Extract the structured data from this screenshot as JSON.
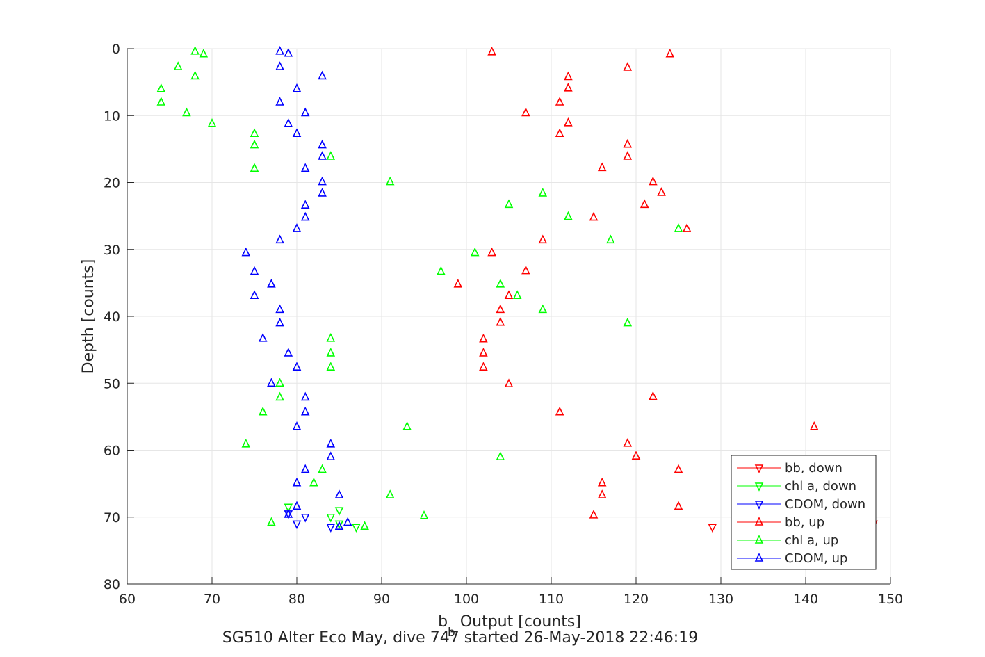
{
  "chart_data": {
    "type": "scatter",
    "xlabel_main": "b",
    "xlabel_sub": "b",
    "xlabel_rest": " Output [counts]",
    "ylabel": "Depth [counts]",
    "caption": "SG510 Alter Eco May, dive 747 started 26-May-2018 22:46:19",
    "xlim": [
      60,
      150
    ],
    "ylim": [
      0,
      80
    ],
    "y_reversed": true,
    "grid": true,
    "xticks": [
      60,
      70,
      80,
      90,
      100,
      110,
      120,
      130,
      140,
      150
    ],
    "yticks": [
      0,
      10,
      20,
      30,
      40,
      50,
      60,
      70,
      80
    ],
    "legend_position": "bottom-right",
    "series": [
      {
        "name": "bb, down",
        "color": "#ff0000",
        "marker": "triangle-down",
        "points": [
          [
            129,
            71.5
          ],
          [
            148,
            71.0
          ]
        ]
      },
      {
        "name": "chl a, down",
        "color": "#00ff00",
        "marker": "triangle-down",
        "points": [
          [
            79,
            68.5
          ],
          [
            84,
            70.0
          ],
          [
            85,
            69.0
          ],
          [
            85,
            71.0
          ],
          [
            87,
            71.5
          ]
        ]
      },
      {
        "name": "CDOM, down",
        "color": "#0000ff",
        "marker": "triangle-down",
        "points": [
          [
            79,
            69.5
          ],
          [
            80,
            71.0
          ],
          [
            81,
            70.0
          ],
          [
            84,
            71.5
          ]
        ]
      },
      {
        "name": "bb, up",
        "color": "#ff0000",
        "marker": "triangle-up",
        "points": [
          [
            103,
            0.5
          ],
          [
            124,
            0.8
          ],
          [
            119,
            2.8
          ],
          [
            112,
            4.2
          ],
          [
            112,
            5.9
          ],
          [
            111,
            8.0
          ],
          [
            107,
            9.6
          ],
          [
            112,
            11.1
          ],
          [
            111,
            12.7
          ],
          [
            119,
            14.3
          ],
          [
            119,
            16.1
          ],
          [
            116,
            17.8
          ],
          [
            122,
            19.9
          ],
          [
            123,
            21.5
          ],
          [
            121,
            23.3
          ],
          [
            115,
            25.2
          ],
          [
            126,
            26.9
          ],
          [
            109,
            28.6
          ],
          [
            103,
            30.5
          ],
          [
            107,
            33.2
          ],
          [
            99,
            35.2
          ],
          [
            105,
            36.9
          ],
          [
            104,
            39.0
          ],
          [
            104,
            40.9
          ],
          [
            102,
            43.4
          ],
          [
            102,
            45.5
          ],
          [
            102,
            47.6
          ],
          [
            105,
            50.1
          ],
          [
            122,
            52.0
          ],
          [
            111,
            54.3
          ],
          [
            141,
            56.5
          ],
          [
            119,
            59.0
          ],
          [
            120,
            60.9
          ],
          [
            125,
            62.9
          ],
          [
            116,
            64.9
          ],
          [
            116,
            66.7
          ],
          [
            125,
            68.4
          ],
          [
            115,
            69.7
          ]
        ]
      },
      {
        "name": "chl a, up",
        "color": "#00ff00",
        "marker": "triangle-up",
        "points": [
          [
            68,
            0.4
          ],
          [
            69,
            0.8
          ],
          [
            66,
            2.7
          ],
          [
            68,
            4.1
          ],
          [
            64,
            6.0
          ],
          [
            64,
            8.0
          ],
          [
            67,
            9.6
          ],
          [
            70,
            11.2
          ],
          [
            75,
            12.7
          ],
          [
            75,
            14.4
          ],
          [
            84,
            16.1
          ],
          [
            75,
            17.9
          ],
          [
            91,
            19.9
          ],
          [
            109,
            21.6
          ],
          [
            105,
            23.3
          ],
          [
            112,
            25.1
          ],
          [
            125,
            26.9
          ],
          [
            117,
            28.6
          ],
          [
            101,
            30.5
          ],
          [
            97,
            33.3
          ],
          [
            104,
            35.2
          ],
          [
            106,
            36.9
          ],
          [
            109,
            39.0
          ],
          [
            119,
            41.0
          ],
          [
            84,
            43.3
          ],
          [
            84,
            45.5
          ],
          [
            84,
            47.6
          ],
          [
            78,
            50.0
          ],
          [
            78,
            52.1
          ],
          [
            76,
            54.3
          ],
          [
            93,
            56.5
          ],
          [
            74,
            59.1
          ],
          [
            104,
            61.0
          ],
          [
            83,
            62.9
          ],
          [
            82,
            64.9
          ],
          [
            91,
            66.7
          ],
          [
            95,
            69.8
          ],
          [
            77,
            70.8
          ],
          [
            88,
            71.4
          ]
        ]
      },
      {
        "name": "CDOM, up",
        "color": "#0000ff",
        "marker": "triangle-up",
        "points": [
          [
            78,
            0.4
          ],
          [
            79,
            0.7
          ],
          [
            78,
            2.7
          ],
          [
            83,
            4.1
          ],
          [
            80,
            6.0
          ],
          [
            78,
            8.0
          ],
          [
            81,
            9.6
          ],
          [
            79,
            11.2
          ],
          [
            80,
            12.7
          ],
          [
            83,
            14.4
          ],
          [
            83,
            16.1
          ],
          [
            81,
            17.9
          ],
          [
            83,
            19.9
          ],
          [
            83,
            21.6
          ],
          [
            81,
            23.4
          ],
          [
            81,
            25.2
          ],
          [
            80,
            26.9
          ],
          [
            78,
            28.6
          ],
          [
            74,
            30.5
          ],
          [
            75,
            33.3
          ],
          [
            77,
            35.2
          ],
          [
            75,
            36.9
          ],
          [
            78,
            39.0
          ],
          [
            78,
            41.0
          ],
          [
            76,
            43.3
          ],
          [
            79,
            45.5
          ],
          [
            80,
            47.6
          ],
          [
            77,
            50.0
          ],
          [
            81,
            52.1
          ],
          [
            81,
            54.3
          ],
          [
            80,
            56.5
          ],
          [
            84,
            59.1
          ],
          [
            84,
            61.0
          ],
          [
            81,
            62.9
          ],
          [
            80,
            64.9
          ],
          [
            85,
            66.7
          ],
          [
            80,
            68.4
          ],
          [
            79,
            69.6
          ],
          [
            86,
            70.8
          ],
          [
            85,
            71.4
          ]
        ]
      }
    ]
  }
}
